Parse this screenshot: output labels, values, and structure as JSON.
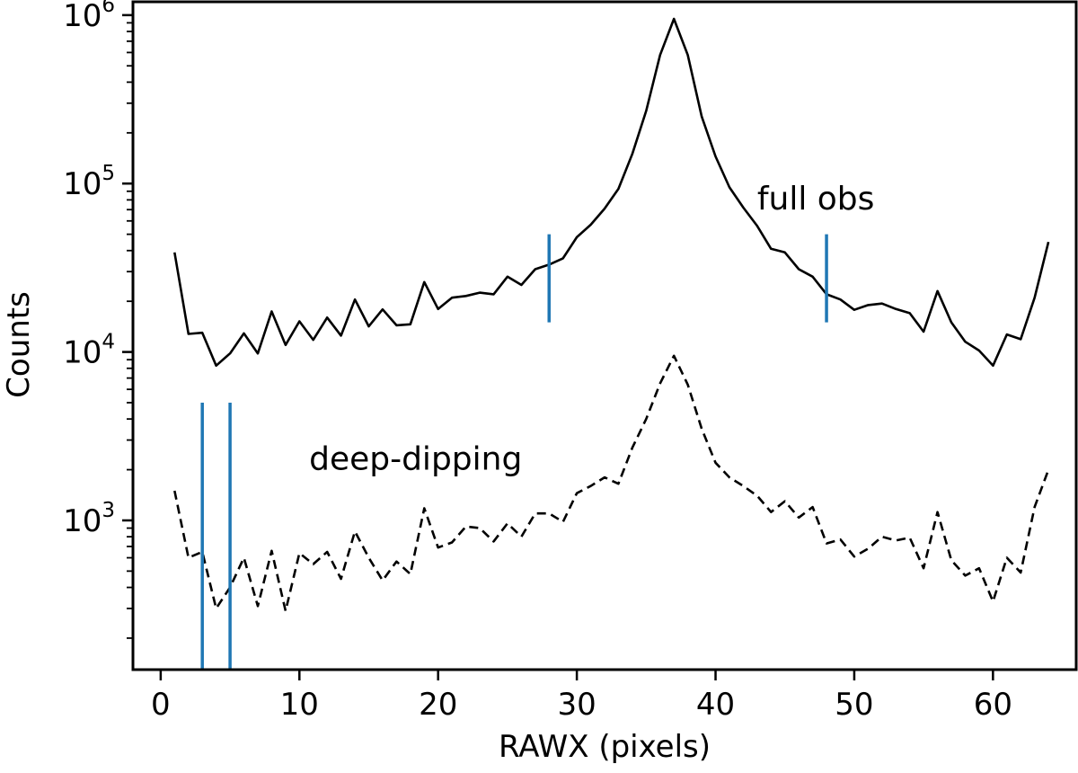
{
  "chart_data": {
    "type": "line",
    "xlabel": "RAWX (pixels)",
    "ylabel": "Counts",
    "xlim": [
      -2,
      66
    ],
    "ylim": [
      130,
      1200000
    ],
    "y_scale": "log",
    "grid": false,
    "x_ticks": [
      0,
      10,
      20,
      30,
      40,
      50,
      60
    ],
    "y_ticks": [
      {
        "value": 1000,
        "base": "10",
        "exp": "3"
      },
      {
        "value": 10000,
        "base": "10",
        "exp": "4"
      },
      {
        "value": 100000,
        "base": "10",
        "exp": "5"
      },
      {
        "value": 1000000,
        "base": "10",
        "exp": "6"
      }
    ],
    "series": [
      {
        "style": "solid",
        "color": "#000000",
        "x": [
          1,
          2,
          3,
          4,
          5,
          6,
          7,
          8,
          9,
          10,
          11,
          12,
          13,
          14,
          15,
          16,
          17,
          18,
          19,
          20,
          21,
          22,
          23,
          24,
          25,
          26,
          27,
          28,
          29,
          30,
          31,
          32,
          33,
          34,
          35,
          36,
          37,
          38,
          39,
          40,
          41,
          42,
          43,
          44,
          45,
          46,
          47,
          48,
          49,
          50,
          51,
          52,
          53,
          54,
          55,
          56,
          57,
          58,
          59,
          60,
          61,
          62,
          63,
          64
        ],
        "y": [
          39000,
          12800,
          13000,
          8300,
          9800,
          12900,
          9800,
          17400,
          11000,
          15200,
          11800,
          16000,
          12500,
          20500,
          14200,
          17900,
          14400,
          14600,
          26000,
          18000,
          21000,
          21500,
          22500,
          22000,
          28000,
          25000,
          31000,
          33000,
          36000,
          48000,
          57000,
          71000,
          93000,
          150000,
          270000,
          580000,
          950000,
          580000,
          250000,
          145000,
          95000,
          72000,
          56000,
          41000,
          39000,
          31000,
          28000,
          22000,
          20500,
          17800,
          19000,
          19400,
          18000,
          17000,
          13200,
          23000,
          15000,
          11500,
          10200,
          8300,
          12700,
          11900,
          21000,
          45000
        ]
      },
      {
        "style": "dashed",
        "color": "#000000",
        "x": [
          1,
          2,
          3,
          4,
          5,
          6,
          7,
          8,
          9,
          10,
          11,
          12,
          13,
          14,
          15,
          16,
          17,
          18,
          19,
          20,
          21,
          22,
          23,
          24,
          25,
          26,
          27,
          28,
          29,
          30,
          31,
          32,
          33,
          34,
          35,
          36,
          37,
          38,
          39,
          40,
          41,
          42,
          43,
          44,
          45,
          46,
          47,
          48,
          49,
          50,
          51,
          52,
          53,
          54,
          55,
          56,
          57,
          58,
          59,
          60,
          61,
          62,
          63,
          64
        ],
        "y": [
          1500,
          600,
          650,
          300,
          400,
          600,
          310,
          660,
          290,
          640,
          550,
          650,
          450,
          860,
          600,
          440,
          570,
          480,
          1180,
          690,
          740,
          920,
          900,
          750,
          960,
          800,
          1100,
          1100,
          980,
          1450,
          1600,
          1800,
          1650,
          2700,
          4000,
          6500,
          9500,
          6400,
          3500,
          2200,
          1800,
          1600,
          1400,
          1120,
          1300,
          1040,
          1200,
          730,
          770,
          610,
          680,
          800,
          760,
          790,
          520,
          1120,
          580,
          470,
          520,
          330,
          600,
          490,
          1200,
          2000
        ]
      }
    ],
    "vlines": [
      {
        "x": 28,
        "y_min": 15000,
        "y_max": 50000,
        "color": "#1f77b4"
      },
      {
        "x": 48,
        "y_min": 15000,
        "y_max": 50000,
        "color": "#1f77b4"
      },
      {
        "x": 3,
        "y_min": 130,
        "y_max": 5000,
        "color": "#1f77b4"
      },
      {
        "x": 5,
        "y_min": 130,
        "y_max": 5000,
        "color": "#1f77b4"
      }
    ],
    "annotations": [
      {
        "text": "full obs",
        "x": 43,
        "y": 70000
      },
      {
        "text": "deep-dipping",
        "x": 10.7,
        "y": 2000
      }
    ]
  }
}
